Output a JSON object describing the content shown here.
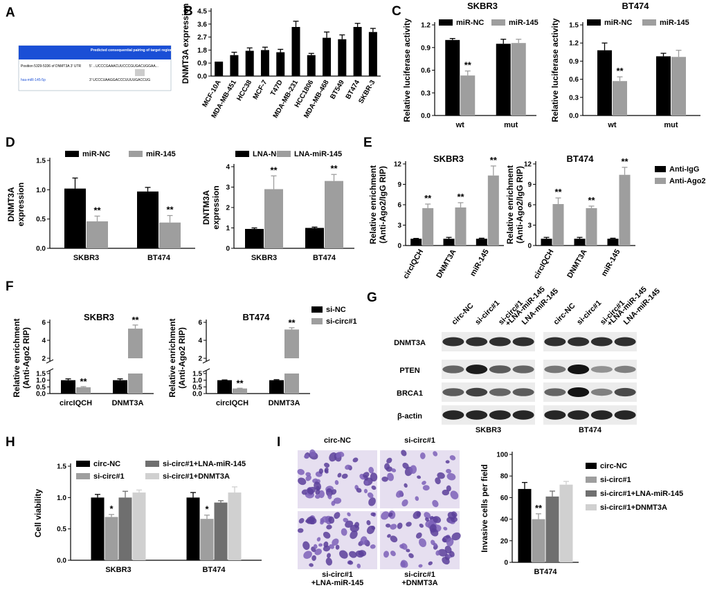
{
  "colors": {
    "black": "#000000",
    "gray": "#9e9e9e",
    "midgray": "#6f6f6f",
    "lightgray": "#d0d0d0"
  },
  "panel_letters": [
    "A",
    "B",
    "C",
    "D",
    "E",
    "F",
    "G",
    "H",
    "I"
  ],
  "panelA": {
    "header": "Predicted consequential pairing of target region (top) and miRNA (bottom)",
    "row1_label": "Position 5329-5336 of DNMT3A 3' UTR",
    "row1_seq": "5'  ...UCCCGAAACUUCCCGUGACUGGAA...",
    "row2_label": "hsa-miR-145-5p",
    "row2_seq": "3'   UCCCUAAGGACCCUUUUGACCUG"
  },
  "chart_data": [
    {
      "id": "B",
      "type": "bar",
      "title": "",
      "ylabel": "DNMT3A expression",
      "ylim": [
        0,
        4.5
      ],
      "yticks": [
        0.0,
        0.9,
        1.8,
        2.7,
        3.6,
        4.5
      ],
      "categories": [
        "MCF-10A",
        "MDA-MB-451",
        "HCC38",
        "MCF-7",
        "T47D",
        "MDA-MB-231",
        "HCC1806",
        "MDA-MB-468",
        "BT549",
        "BT474",
        "SKBR-3"
      ],
      "series": [
        {
          "name": "DNMT3A",
          "color": "#000000",
          "values": [
            1.0,
            1.45,
            1.75,
            1.8,
            1.65,
            3.4,
            1.45,
            2.65,
            2.55,
            3.4,
            3.05
          ],
          "errors": [
            0.0,
            0.2,
            0.2,
            0.2,
            0.2,
            0.4,
            0.12,
            0.4,
            0.3,
            0.25,
            0.25
          ]
        }
      ]
    },
    {
      "id": "C1",
      "type": "bar",
      "title": "SKBR3",
      "ylabel": "Relative luciferase activity",
      "ylim": [
        0,
        1.2
      ],
      "yticks": [
        0.0,
        0.3,
        0.6,
        0.9,
        1.2
      ],
      "legend_position": "top",
      "categories": [
        "wt",
        "mut"
      ],
      "series": [
        {
          "name": "miR-NC",
          "color": "#000000",
          "values": [
            1.0,
            0.95
          ],
          "errors": [
            0.02,
            0.06
          ]
        },
        {
          "name": "miR-145",
          "color": "#9e9e9e",
          "values": [
            0.53,
            0.96
          ],
          "errors": [
            0.06,
            0.05
          ]
        }
      ],
      "annotations": [
        {
          "label": "**",
          "category": 0,
          "series": 1
        }
      ]
    },
    {
      "id": "C2",
      "type": "bar",
      "title": "BT474",
      "ylabel": "Relative luciferase activity",
      "ylim": [
        0,
        1.5
      ],
      "yticks": [
        0.0,
        0.3,
        0.6,
        0.9,
        1.2,
        1.5
      ],
      "legend_position": "top",
      "categories": [
        "wt",
        "mut"
      ],
      "series": [
        {
          "name": "miR-NC",
          "color": "#000000",
          "values": [
            1.08,
            0.98
          ],
          "errors": [
            0.12,
            0.05
          ]
        },
        {
          "name": "miR-145",
          "color": "#9e9e9e",
          "values": [
            0.57,
            0.97
          ],
          "errors": [
            0.07,
            0.11
          ]
        }
      ],
      "annotations": [
        {
          "label": "**",
          "category": 0,
          "series": 1
        }
      ]
    },
    {
      "id": "D1",
      "type": "bar",
      "title": "",
      "ylabel": "DNMT3A expression",
      "ylim": [
        0,
        1.5
      ],
      "yticks": [
        0.0,
        0.5,
        1.0,
        1.5
      ],
      "legend_position": "top",
      "categories": [
        "SKBR3",
        "BT474"
      ],
      "series": [
        {
          "name": "miR-NC",
          "color": "#000000",
          "values": [
            1.02,
            0.97
          ],
          "errors": [
            0.18,
            0.07
          ]
        },
        {
          "name": "miR-145",
          "color": "#9e9e9e",
          "values": [
            0.46,
            0.44
          ],
          "errors": [
            0.09,
            0.12
          ]
        }
      ],
      "annotations": [
        {
          "label": "**",
          "category": 0,
          "series": 1
        },
        {
          "label": "**",
          "category": 1,
          "series": 1
        }
      ]
    },
    {
      "id": "D2",
      "type": "bar",
      "title": "",
      "ylabel": "DNTM3A expression",
      "ylim": [
        0,
        4
      ],
      "yticks": [
        0,
        1,
        2,
        3,
        4
      ],
      "legend_position": "top",
      "categories": [
        "SKBR3",
        "BT474"
      ],
      "series": [
        {
          "name": "LNA-NC",
          "color": "#000000",
          "values": [
            0.95,
            1.0
          ],
          "errors": [
            0.05,
            0.04
          ]
        },
        {
          "name": "LNA-miR-145",
          "color": "#9e9e9e",
          "values": [
            2.9,
            3.3
          ],
          "errors": [
            0.65,
            0.32
          ]
        }
      ],
      "annotations": [
        {
          "label": "**",
          "category": 0,
          "series": 1
        },
        {
          "label": "**",
          "category": 1,
          "series": 1
        }
      ]
    },
    {
      "id": "E1",
      "type": "bar",
      "title": "SKBR3",
      "ylabel": "Relative enrichment (Anti-Ago2/IgG RIP)",
      "ylim": [
        0,
        12
      ],
      "yticks": [
        0,
        3,
        6,
        9,
        12
      ],
      "categories": [
        "circIQCH",
        "DNMT3A",
        "miR-145"
      ],
      "series": [
        {
          "name": "Anti-IgG",
          "color": "#000000",
          "values": [
            1.0,
            1.0,
            1.0
          ],
          "errors": [
            0.05,
            0.2,
            0.08
          ]
        },
        {
          "name": "Anti-Ago2",
          "color": "#9e9e9e",
          "values": [
            5.5,
            5.6,
            10.3
          ],
          "errors": [
            0.6,
            0.7,
            1.4
          ]
        }
      ],
      "annotations": [
        {
          "label": "**",
          "category": 0,
          "series": 1
        },
        {
          "label": "**",
          "category": 1,
          "series": 1
        },
        {
          "label": "**",
          "category": 2,
          "series": 1
        }
      ]
    },
    {
      "id": "E2",
      "type": "bar",
      "title": "BT474",
      "ylabel": "Relative enrichment (Anti-Ago2/IgG RIP)",
      "ylim": [
        0,
        12
      ],
      "yticks": [
        0,
        3,
        6,
        9,
        12
      ],
      "legend_position": "right",
      "categories": [
        "circIQCH",
        "DNMT3A",
        "miR-145"
      ],
      "series": [
        {
          "name": "Anti-IgG",
          "color": "#000000",
          "values": [
            1.0,
            1.0,
            1.0
          ],
          "errors": [
            0.2,
            0.2,
            0.08
          ]
        },
        {
          "name": "Anti-Ago2",
          "color": "#9e9e9e",
          "values": [
            6.1,
            5.5,
            10.4
          ],
          "errors": [
            0.9,
            0.3,
            1.1
          ]
        }
      ],
      "annotations": [
        {
          "label": "**",
          "category": 0,
          "series": 1
        },
        {
          "label": "**",
          "category": 1,
          "series": 1
        },
        {
          "label": "**",
          "category": 2,
          "series": 1
        }
      ]
    },
    {
      "id": "F1",
      "type": "bar",
      "title": "SKBR3",
      "ylabel": "Relative enrichment (Anti-Ago2 RIP)",
      "axis_break": true,
      "yticks": [
        0.0,
        0.5,
        1.0,
        1.5,
        2,
        4,
        6
      ],
      "categories": [
        "circIQCH",
        "DNMT3A"
      ],
      "series": [
        {
          "name": "si-NC",
          "color": "#000000",
          "values": [
            1.0,
            1.0
          ],
          "errors": [
            0.1,
            0.1
          ]
        },
        {
          "name": "si-circ#1",
          "color": "#9e9e9e",
          "values": [
            0.47,
            5.3
          ],
          "errors": [
            0.05,
            0.4
          ]
        }
      ],
      "annotations": [
        {
          "label": "**",
          "category": 0,
          "series": 1
        },
        {
          "label": "**",
          "category": 1,
          "series": 1
        }
      ]
    },
    {
      "id": "F2",
      "type": "bar",
      "title": "BT474",
      "ylabel": "Relative enrichment (Anti-Ago2 RIP)",
      "axis_break": true,
      "yticks": [
        0.0,
        0.5,
        1.0,
        1.5,
        2,
        4,
        6
      ],
      "legend_position": "top-right",
      "categories": [
        "circIQCH",
        "DNMT3A"
      ],
      "series": [
        {
          "name": "si-NC",
          "color": "#000000",
          "values": [
            1.0,
            1.0
          ],
          "errors": [
            0.02,
            0.04
          ]
        },
        {
          "name": "si-circ#1",
          "color": "#9e9e9e",
          "values": [
            0.38,
            5.2
          ],
          "errors": [
            0.02,
            0.2
          ]
        }
      ],
      "annotations": [
        {
          "label": "**",
          "category": 0,
          "series": 1
        },
        {
          "label": "**",
          "category": 1,
          "series": 1
        }
      ]
    },
    {
      "id": "H",
      "type": "bar",
      "title": "",
      "ylabel": "Cell viability",
      "ylim": [
        0,
        1.5
      ],
      "yticks": [
        0.0,
        0.5,
        1.0,
        1.5
      ],
      "legend_position": "top",
      "categories": [
        "SKBR3",
        "BT474"
      ],
      "series": [
        {
          "name": "circ-NC",
          "color": "#000000",
          "values": [
            1.0,
            1.0
          ],
          "errors": [
            0.05,
            0.08
          ]
        },
        {
          "name": "si-circ#1",
          "color": "#9e9e9e",
          "values": [
            0.69,
            0.66
          ],
          "errors": [
            0.04,
            0.06
          ]
        },
        {
          "name": "si-circ#1+LNA-miR-145",
          "color": "#6f6f6f",
          "values": [
            1.0,
            0.92
          ],
          "errors": [
            0.1,
            0.03
          ]
        },
        {
          "name": "si-circ#1+DNMT3A",
          "color": "#d0d0d0",
          "values": [
            1.08,
            1.08
          ],
          "errors": [
            0.04,
            0.09
          ]
        }
      ],
      "annotations": [
        {
          "label": "*",
          "category": 0,
          "series": 1
        },
        {
          "label": "*",
          "category": 1,
          "series": 1
        }
      ]
    },
    {
      "id": "I",
      "type": "bar",
      "title": "",
      "ylabel": "Invasive cells per field",
      "ylim": [
        0,
        100
      ],
      "yticks": [
        0,
        20,
        40,
        60,
        80,
        100
      ],
      "legend_position": "right",
      "categories": [
        "BT474"
      ],
      "series": [
        {
          "name": "circ-NC",
          "color": "#000000",
          "values": [
            68
          ],
          "errors": [
            6
          ]
        },
        {
          "name": "si-circ#1",
          "color": "#9e9e9e",
          "values": [
            40
          ],
          "errors": [
            5
          ]
        },
        {
          "name": "si-circ#1+LNA-miR-145",
          "color": "#6f6f6f",
          "values": [
            61
          ],
          "errors": [
            5
          ]
        },
        {
          "name": "si-circ#1+DNMT3A",
          "color": "#d0d0d0",
          "values": [
            72
          ],
          "errors": [
            3
          ]
        }
      ],
      "annotations": [
        {
          "label": "**",
          "category": 0,
          "series": 1
        }
      ]
    }
  ],
  "panelE_legend": [
    "Anti-IgG",
    "Anti-Ago2"
  ],
  "panelG": {
    "lanes_left": [
      "circ-NC",
      "si-circ#1",
      "si-circ#1\n+LNA-miR-145",
      "LNA-miR-145"
    ],
    "lanes_right": [
      "circ-NC",
      "si-circ#1",
      "si-circ#1\n+LNA-miR-145",
      "LNA-miR-145"
    ],
    "rows": [
      "DNMT3A",
      "PTEN",
      "BRCA1",
      "β-actin"
    ],
    "left_label": "SKBR3",
    "right_label": "BT474",
    "intensity_left": [
      [
        0.85,
        0.85,
        0.85,
        0.85
      ],
      [
        0.55,
        0.95,
        0.6,
        0.55
      ],
      [
        0.6,
        0.75,
        0.55,
        0.6
      ],
      [
        0.9,
        0.9,
        0.9,
        0.9
      ]
    ],
    "intensity_right": [
      [
        0.85,
        0.85,
        0.85,
        0.85
      ],
      [
        0.45,
        1.0,
        0.3,
        0.4
      ],
      [
        0.55,
        1.0,
        0.4,
        0.7
      ],
      [
        0.9,
        0.9,
        0.9,
        0.9
      ]
    ]
  },
  "panelI_images": {
    "top_left": "circ-NC",
    "top_right": "si-circ#1",
    "bottom_left": "si-circ#1\n+LNA-miR-145",
    "bottom_right": "si-circ#1\n+DNMT3A"
  }
}
